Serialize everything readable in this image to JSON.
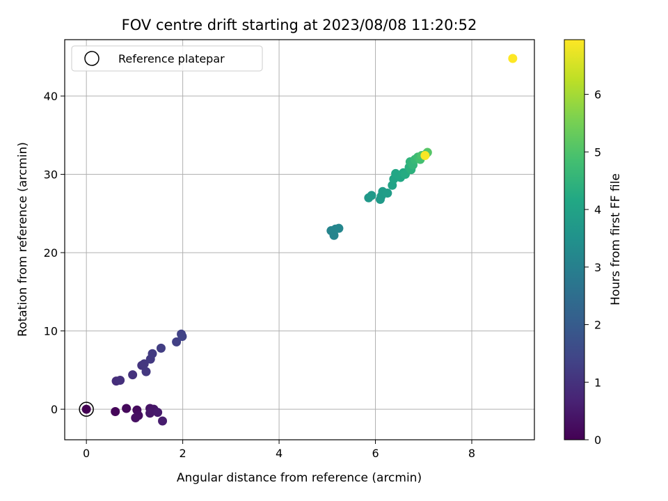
{
  "chart_data": {
    "type": "scatter",
    "title": "FOV centre drift starting at 2023/08/08 11:20:52",
    "xlabel": "Angular distance from reference (arcmin)",
    "ylabel": "Rotation from reference (arcmin)",
    "xlim": [
      -0.45,
      9.3
    ],
    "ylim": [
      -3.9,
      47.2
    ],
    "xticks": [
      0,
      2,
      4,
      6,
      8
    ],
    "yticks": [
      0,
      10,
      20,
      30,
      40
    ],
    "grid": true,
    "legend": {
      "placement": "top-left",
      "entries": [
        {
          "label": "Reference platepar",
          "marker": "open-circle"
        }
      ]
    },
    "colorbar": {
      "label": "Hours from first FF file",
      "colormap": "viridis",
      "range": [
        0,
        6.95
      ],
      "ticks": [
        0,
        1,
        2,
        3,
        4,
        5,
        6
      ]
    },
    "reference_point": {
      "x": 0,
      "y": 0
    },
    "points": [
      {
        "x": 0.0,
        "y": 0.0,
        "hours": 0.0
      },
      {
        "x": 0.6,
        "y": -0.3,
        "hours": 0.1
      },
      {
        "x": 0.83,
        "y": 0.1,
        "hours": 0.15
      },
      {
        "x": 1.05,
        "y": -0.1,
        "hours": 0.2
      },
      {
        "x": 1.08,
        "y": -0.8,
        "hours": 0.25
      },
      {
        "x": 1.02,
        "y": -1.1,
        "hours": 0.3
      },
      {
        "x": 1.32,
        "y": 0.1,
        "hours": 0.35
      },
      {
        "x": 1.35,
        "y": -0.2,
        "hours": 0.4
      },
      {
        "x": 1.4,
        "y": 0.0,
        "hours": 0.42
      },
      {
        "x": 1.32,
        "y": -0.5,
        "hours": 0.45
      },
      {
        "x": 1.48,
        "y": -0.4,
        "hours": 0.5
      },
      {
        "x": 1.58,
        "y": -1.5,
        "hours": 0.55
      },
      {
        "x": 0.62,
        "y": 3.6,
        "hours": 0.9
      },
      {
        "x": 0.7,
        "y": 3.7,
        "hours": 0.95
      },
      {
        "x": 0.96,
        "y": 4.4,
        "hours": 1.0
      },
      {
        "x": 1.15,
        "y": 5.6,
        "hours": 1.05
      },
      {
        "x": 1.2,
        "y": 5.8,
        "hours": 1.1
      },
      {
        "x": 1.24,
        "y": 4.8,
        "hours": 1.12
      },
      {
        "x": 1.33,
        "y": 6.4,
        "hours": 1.15
      },
      {
        "x": 1.37,
        "y": 7.1,
        "hours": 1.2
      },
      {
        "x": 1.55,
        "y": 7.8,
        "hours": 1.25
      },
      {
        "x": 1.87,
        "y": 8.6,
        "hours": 1.3
      },
      {
        "x": 1.97,
        "y": 9.6,
        "hours": 1.35
      },
      {
        "x": 1.99,
        "y": 9.3,
        "hours": 1.4
      },
      {
        "x": 5.08,
        "y": 22.8,
        "hours": 3.1
      },
      {
        "x": 5.14,
        "y": 22.2,
        "hours": 3.12
      },
      {
        "x": 5.17,
        "y": 23.0,
        "hours": 3.15
      },
      {
        "x": 5.24,
        "y": 23.1,
        "hours": 3.18
      },
      {
        "x": 5.86,
        "y": 27.0,
        "hours": 3.7
      },
      {
        "x": 5.92,
        "y": 27.3,
        "hours": 3.72
      },
      {
        "x": 6.1,
        "y": 26.8,
        "hours": 3.75
      },
      {
        "x": 6.12,
        "y": 27.2,
        "hours": 3.78
      },
      {
        "x": 6.15,
        "y": 27.8,
        "hours": 3.8
      },
      {
        "x": 6.25,
        "y": 27.6,
        "hours": 3.85
      },
      {
        "x": 6.35,
        "y": 28.6,
        "hours": 4.0
      },
      {
        "x": 6.38,
        "y": 29.4,
        "hours": 4.05
      },
      {
        "x": 6.42,
        "y": 30.1,
        "hours": 4.1
      },
      {
        "x": 6.52,
        "y": 29.6,
        "hours": 4.15
      },
      {
        "x": 6.58,
        "y": 30.2,
        "hours": 4.2
      },
      {
        "x": 6.62,
        "y": 30.0,
        "hours": 4.25
      },
      {
        "x": 6.7,
        "y": 30.9,
        "hours": 4.35
      },
      {
        "x": 6.74,
        "y": 30.6,
        "hours": 4.4
      },
      {
        "x": 6.72,
        "y": 31.6,
        "hours": 4.5
      },
      {
        "x": 6.78,
        "y": 31.2,
        "hours": 4.55
      },
      {
        "x": 6.82,
        "y": 31.9,
        "hours": 4.65
      },
      {
        "x": 6.88,
        "y": 32.2,
        "hours": 4.75
      },
      {
        "x": 6.93,
        "y": 31.9,
        "hours": 4.85
      },
      {
        "x": 6.96,
        "y": 32.4,
        "hours": 4.95
      },
      {
        "x": 7.05,
        "y": 32.6,
        "hours": 5.0
      },
      {
        "x": 7.08,
        "y": 32.8,
        "hours": 5.1
      },
      {
        "x": 7.03,
        "y": 32.4,
        "hours": 6.9
      },
      {
        "x": 8.85,
        "y": 44.8,
        "hours": 6.95
      }
    ]
  }
}
